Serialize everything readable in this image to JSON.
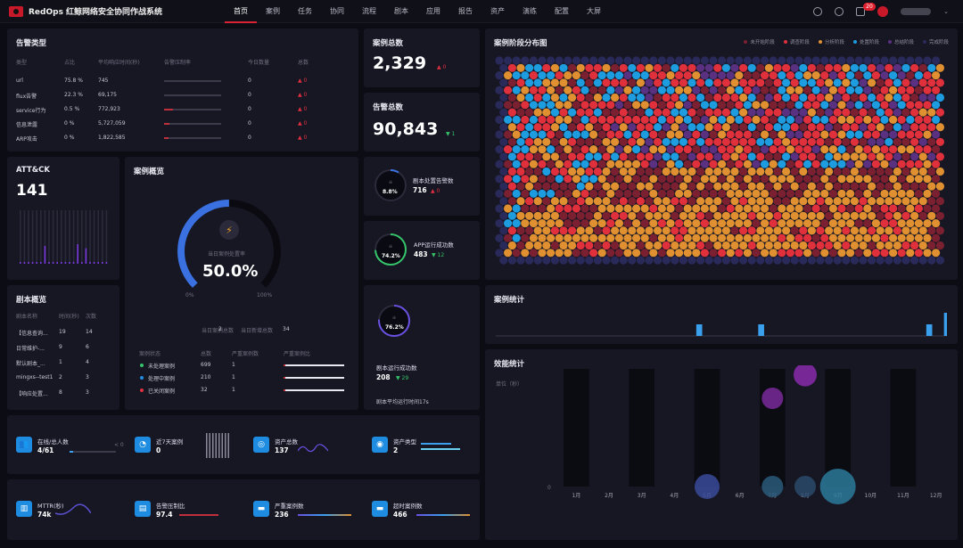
{
  "app": {
    "title": "RedOps 红鲸网络安全协同作战系统"
  },
  "nav": [
    "首页",
    "案例",
    "任务",
    "协同",
    "流程",
    "剧本",
    "应用",
    "报告",
    "资产",
    "演练",
    "配置",
    "大屏"
  ],
  "notif_count": "20",
  "alert_types": {
    "title": "告警类型",
    "headers": [
      "类型",
      "占比",
      "平均响应时间(秒)",
      "告警压制率",
      "今日数量",
      "总数"
    ],
    "rows": [
      {
        "type": "url",
        "ratio": "75.8 %",
        "time": "745",
        "suppress": 0,
        "today": "0",
        "total": "0"
      },
      {
        "type": "flux告警",
        "ratio": "22.3 %",
        "time": "69,175",
        "suppress": 0,
        "today": "0",
        "total": "0"
      },
      {
        "type": "service行为",
        "ratio": "0.5 %",
        "time": "772,923",
        "suppress": 0.15,
        "today": "0",
        "total": "0"
      },
      {
        "type": "信息泄露",
        "ratio": "0 %",
        "time": "5,727,059",
        "suppress": 0.1,
        "today": "0",
        "total": "0"
      },
      {
        "type": "ARP攻击",
        "ratio": "0 %",
        "time": "1,822,585",
        "suppress": 0.08,
        "today": "0",
        "total": "0"
      }
    ]
  },
  "case_total": {
    "title": "案例总数",
    "value": "2,329",
    "delta": "0"
  },
  "alert_total": {
    "title": "告警总数",
    "value": "90,843",
    "delta": "1"
  },
  "attck": {
    "title": "ATT&CK",
    "value": "141"
  },
  "case_overview": {
    "title": "案例概览",
    "gauge_label": "当日案例处置率",
    "gauge_value": "50.0%",
    "gauge_ratio": 0.5,
    "min": "0%",
    "max": "100%",
    "today_total_label": "当日案例总数",
    "today_total": "2",
    "today_open_label": "当日新增总数",
    "today_open": "34",
    "headers": [
      "案例状态",
      "总数",
      "严重案例数",
      "严重案例比"
    ],
    "rows": [
      {
        "status": "未处理案例",
        "total": "699",
        "severe": "1",
        "color": "#36c46a",
        "ratio": 0.01
      },
      {
        "status": "处理中案例",
        "total": "210",
        "severe": "1",
        "color": "#1e8ce0",
        "ratio": 0.01
      },
      {
        "status": "已关闭案例",
        "total": "32",
        "severe": "1",
        "color": "#e03040",
        "ratio": 0.02
      }
    ]
  },
  "playbook_overview": {
    "title": "剧本概览",
    "headers": [
      "剧本名称",
      "时间(秒)",
      "次数"
    ],
    "rows": [
      {
        "name": "【信息查询...",
        "time": "19",
        "count": "14"
      },
      {
        "name": "日常维护-...",
        "time": "9",
        "count": "6"
      },
      {
        "name": "默认剧本_...",
        "time": "1",
        "count": "4"
      },
      {
        "name": "mingxs--test1",
        "time": "2",
        "count": "3"
      },
      {
        "name": "【响应处置...",
        "time": "8",
        "count": "3"
      }
    ]
  },
  "playbook_alert": {
    "label": "剧本处置告警数",
    "value": "716",
    "delta": "0",
    "ring": "8.8%",
    "ratio": 0.088
  },
  "app_success": {
    "label": "APP运行成功数",
    "value": "483",
    "delta": "12",
    "ring": "74.2%",
    "ratio": 0.742
  },
  "playbook_success": {
    "label": "剧本运行成功数",
    "value": "208",
    "delta": "29",
    "ring": "76.2%",
    "ratio": 0.762,
    "avg": "剧本平均运行时间17s"
  },
  "stage_map": {
    "title": "案例阶段分布图",
    "legend": [
      {
        "name": "未开始阶段",
        "color": "#7a2030"
      },
      {
        "name": "调查阶段",
        "color": "#e0303c"
      },
      {
        "name": "分析阶段",
        "color": "#e09030"
      },
      {
        "name": "处置阶段",
        "color": "#1e9ce0"
      },
      {
        "name": "总结阶段",
        "color": "#5a3080"
      },
      {
        "name": "完成阶段",
        "color": "#2a2a5a"
      }
    ]
  },
  "case_stats": {
    "title": "案例统计",
    "values": [
      0,
      0,
      0,
      0,
      0,
      0,
      0,
      0,
      0,
      0,
      0,
      0,
      0,
      0,
      0,
      0,
      0,
      0,
      0,
      0,
      0,
      0,
      0,
      0,
      0,
      0,
      0,
      0,
      0,
      0,
      0,
      0,
      0,
      0,
      0,
      0,
      0,
      0,
      0,
      0,
      0,
      0,
      0,
      0,
      0,
      0,
      0,
      0,
      0,
      0,
      0,
      0,
      0,
      0,
      0,
      0,
      0,
      0,
      0,
      0,
      0,
      0,
      0,
      0,
      0,
      0,
      0,
      0,
      5,
      0,
      0,
      0,
      0,
      0,
      0,
      0,
      0,
      0,
      0,
      0,
      0,
      0,
      0,
      0,
      0,
      0,
      0,
      0,
      0,
      5,
      0,
      0,
      0,
      0,
      0,
      0,
      0,
      0,
      0,
      0,
      0,
      0,
      0,
      0,
      0,
      0,
      0,
      0,
      0,
      0,
      0,
      0,
      0,
      0,
      0,
      0,
      0,
      0,
      0,
      0,
      0,
      0,
      0,
      0,
      0,
      0,
      0,
      0,
      0,
      0,
      0,
      0,
      0,
      0,
      0,
      0,
      0,
      0,
      0,
      0,
      0,
      0,
      0,
      0,
      0,
      0,
      5,
      0,
      0,
      0,
      0,
      0,
      10
    ]
  },
  "efficiency": {
    "title": "效能统计",
    "unit": "单位（秒）",
    "zero": "0",
    "months": [
      "1月",
      "2月",
      "3月",
      "4月",
      "5月",
      "6月",
      "7月",
      "8月",
      "9月",
      "10月",
      "11月",
      "12月"
    ],
    "bubbles": [
      {
        "month": 5,
        "value": 0,
        "r": 14,
        "color": "#3a4a9a"
      },
      {
        "month": 7,
        "value": 0,
        "r": 12,
        "color": "#2a5a7a"
      },
      {
        "month": 7,
        "value": 0.75,
        "r": 12,
        "color": "#7a2a9a"
      },
      {
        "month": 8,
        "value": 0.95,
        "r": 13,
        "color": "#8a2aaa"
      },
      {
        "month": 8,
        "value": 0,
        "r": 12,
        "color": "#2a4a6a"
      },
      {
        "month": 9,
        "value": 0,
        "r": 20,
        "color": "#2a7a9a"
      }
    ]
  },
  "kpis": [
    {
      "label": "在线/总人数",
      "value": "4/61",
      "icon": "users-icon",
      "glyph": "👥",
      "extra": "< 0"
    },
    {
      "label": "近7天案例",
      "value": "0",
      "icon": "clock-icon",
      "glyph": "◔"
    },
    {
      "label": "资产总数",
      "value": "137",
      "icon": "asset-icon",
      "glyph": "◎"
    },
    {
      "label": "资产类型",
      "value": "2",
      "icon": "type-icon",
      "glyph": "◉"
    },
    {
      "label": "MTTR(秒)",
      "value": "74k",
      "icon": "chart-icon",
      "glyph": "▥"
    },
    {
      "label": "告警压制比",
      "value": "97.4",
      "icon": "list-icon",
      "glyph": "▤"
    },
    {
      "label": "严重案例数",
      "value": "236",
      "icon": "folder-icon",
      "glyph": "▬"
    },
    {
      "label": "超时案例数",
      "value": "466",
      "icon": "folder2-icon",
      "glyph": "▬"
    }
  ]
}
